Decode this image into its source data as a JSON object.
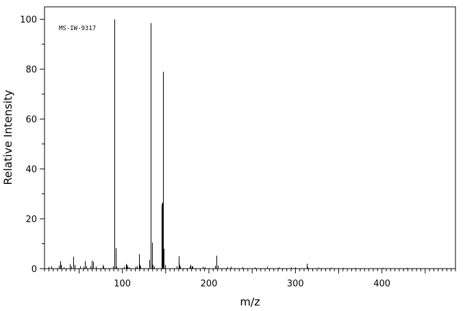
{
  "chart_data": {
    "type": "bar",
    "title": "",
    "annotation": "MS-IW-9317",
    "xlabel": "m/z",
    "ylabel": "Relative Intensity",
    "xlim": [
      10,
      485
    ],
    "ylim": [
      0,
      105
    ],
    "x_major_ticks": [
      100,
      200,
      300,
      400
    ],
    "x_minor_step": 5,
    "y_major_ticks": [
      0,
      20,
      40,
      60,
      80,
      100
    ],
    "y_minor_step": 10,
    "grid": false,
    "legend": "none",
    "peaks": [
      {
        "mz": 15,
        "intensity": 0.7
      },
      {
        "mz": 18,
        "intensity": 1.0
      },
      {
        "mz": 27,
        "intensity": 1.2
      },
      {
        "mz": 28,
        "intensity": 3.0
      },
      {
        "mz": 29,
        "intensity": 1.5
      },
      {
        "mz": 32,
        "intensity": 0.5
      },
      {
        "mz": 39,
        "intensity": 1.8
      },
      {
        "mz": 41,
        "intensity": 1.0
      },
      {
        "mz": 43,
        "intensity": 4.8
      },
      {
        "mz": 45,
        "intensity": 1.5
      },
      {
        "mz": 51,
        "intensity": 1.0
      },
      {
        "mz": 55,
        "intensity": 0.8
      },
      {
        "mz": 57,
        "intensity": 3.0
      },
      {
        "mz": 58,
        "intensity": 1.0
      },
      {
        "mz": 63,
        "intensity": 1.0
      },
      {
        "mz": 65,
        "intensity": 3.2
      },
      {
        "mz": 66,
        "intensity": 2.8
      },
      {
        "mz": 69,
        "intensity": 0.8
      },
      {
        "mz": 77,
        "intensity": 1.5
      },
      {
        "mz": 78,
        "intensity": 0.8
      },
      {
        "mz": 89,
        "intensity": 1.0
      },
      {
        "mz": 91,
        "intensity": 100.0
      },
      {
        "mz": 92,
        "intensity": 8.2
      },
      {
        "mz": 93,
        "intensity": 0.8
      },
      {
        "mz": 102,
        "intensity": 0.8
      },
      {
        "mz": 104,
        "intensity": 1.8
      },
      {
        "mz": 105,
        "intensity": 1.5
      },
      {
        "mz": 106,
        "intensity": 0.8
      },
      {
        "mz": 107,
        "intensity": 0.6
      },
      {
        "mz": 115,
        "intensity": 0.8
      },
      {
        "mz": 117,
        "intensity": 1.0
      },
      {
        "mz": 119,
        "intensity": 5.8
      },
      {
        "mz": 120,
        "intensity": 1.5
      },
      {
        "mz": 121,
        "intensity": 0.8
      },
      {
        "mz": 131,
        "intensity": 3.5
      },
      {
        "mz": 133,
        "intensity": 98.5
      },
      {
        "mz": 134,
        "intensity": 10.5
      },
      {
        "mz": 135,
        "intensity": 1.5
      },
      {
        "mz": 137,
        "intensity": 0.8
      },
      {
        "mz": 145,
        "intensity": 25.8
      },
      {
        "mz": 146,
        "intensity": 26.5
      },
      {
        "mz": 147,
        "intensity": 79.0
      },
      {
        "mz": 148,
        "intensity": 8.0
      },
      {
        "mz": 149,
        "intensity": 1.5
      },
      {
        "mz": 163,
        "intensity": 1.0
      },
      {
        "mz": 165,
        "intensity": 5.0
      },
      {
        "mz": 166,
        "intensity": 1.5
      },
      {
        "mz": 167,
        "intensity": 0.8
      },
      {
        "mz": 178,
        "intensity": 0.8
      },
      {
        "mz": 179,
        "intensity": 1.5
      },
      {
        "mz": 180,
        "intensity": 1.0
      },
      {
        "mz": 181,
        "intensity": 0.8
      },
      {
        "mz": 193,
        "intensity": 0.8
      },
      {
        "mz": 195,
        "intensity": 0.6
      },
      {
        "mz": 207,
        "intensity": 1.2
      },
      {
        "mz": 209,
        "intensity": 5.2
      },
      {
        "mz": 210,
        "intensity": 1.2
      },
      {
        "mz": 221,
        "intensity": 0.6
      },
      {
        "mz": 225,
        "intensity": 0.8
      },
      {
        "mz": 239,
        "intensity": 0.6
      },
      {
        "mz": 253,
        "intensity": 0.5
      },
      {
        "mz": 267,
        "intensity": 0.8
      },
      {
        "mz": 281,
        "intensity": 0.5
      },
      {
        "mz": 295,
        "intensity": 0.5
      },
      {
        "mz": 300,
        "intensity": 0.5
      },
      {
        "mz": 313,
        "intensity": 2.0
      },
      {
        "mz": 314,
        "intensity": 0.6
      },
      {
        "mz": 327,
        "intensity": 0.4
      },
      {
        "mz": 341,
        "intensity": 0.4
      },
      {
        "mz": 355,
        "intensity": 0.3
      },
      {
        "mz": 369,
        "intensity": 0.3
      },
      {
        "mz": 401,
        "intensity": 0.3
      },
      {
        "mz": 429,
        "intensity": 0.3
      }
    ]
  }
}
